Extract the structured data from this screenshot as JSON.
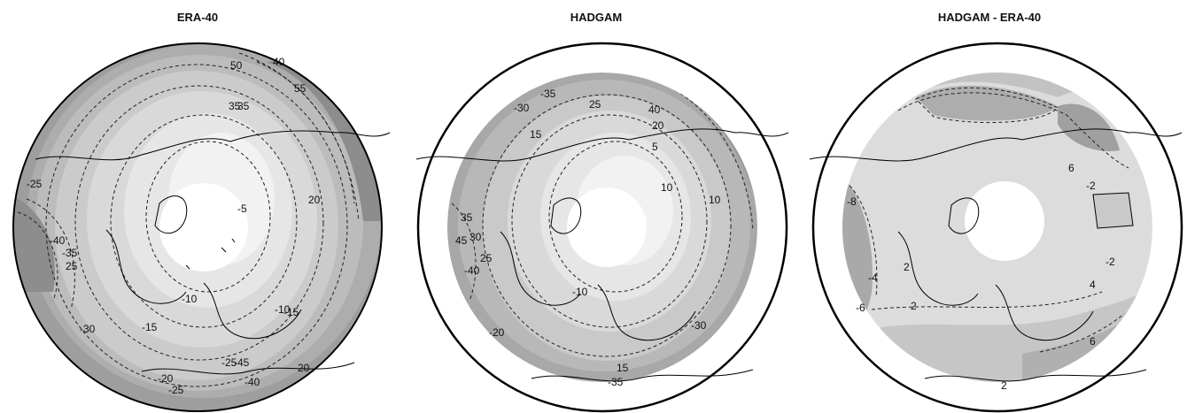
{
  "panels": [
    {
      "title": "ERA-40",
      "shade_range": "full",
      "levels": [
        "#f2f2f2",
        "#e6e6e6",
        "#d9d9d9",
        "#c9c9c9",
        "#b8b8b8",
        "#a8a8a8",
        "#979797"
      ],
      "contour_labels": [
        "50",
        "40",
        "55",
        "35",
        "35",
        "20",
        "-25",
        "-5",
        "-40",
        "-35",
        "25",
        "-30",
        "-15",
        "-10",
        "-10",
        "-15",
        "-20",
        "-25",
        "-25",
        "-45",
        "-40",
        "20"
      ]
    },
    {
      "title": "HADGAM",
      "shade_range": "partial",
      "levels": [
        "#f2f2f2",
        "#e6e6e6",
        "#d9d9d9",
        "#c9c9c9",
        "#b8b8b8",
        "#a8a8a8",
        "#979797"
      ],
      "contour_labels": [
        "-35",
        "-30",
        "25",
        "15",
        "40",
        "20",
        "5",
        "10",
        "10",
        "35",
        "45",
        "30",
        "25",
        "-40",
        "-10",
        "-20",
        "15",
        "-35",
        "-30"
      ]
    },
    {
      "title": "HADGAM - ERA-40",
      "shade_range": "partial",
      "levels": [
        "#e6e6e6",
        "#d2d2d2",
        "#bdbdbd",
        "#a9a9a9"
      ],
      "contour_labels": [
        "6",
        "-2",
        "-8",
        "-6",
        "-4",
        "2",
        "2",
        "4",
        "-2",
        "6",
        "2"
      ]
    }
  ]
}
